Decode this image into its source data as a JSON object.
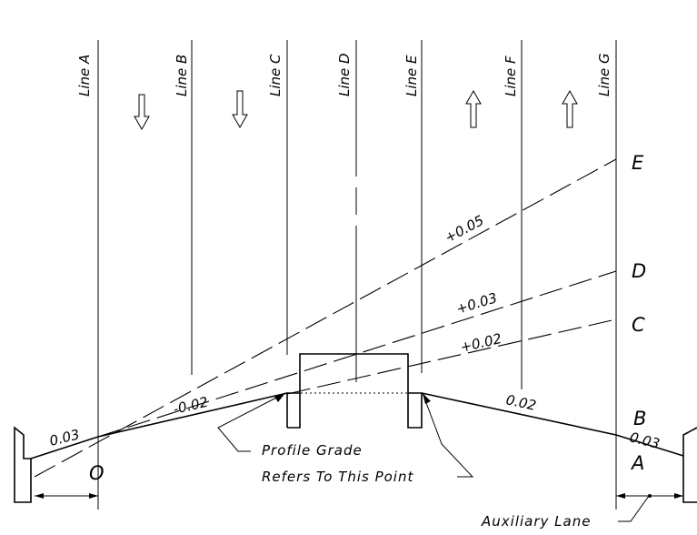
{
  "lines": [
    {
      "id": "line-a",
      "label": "Line A"
    },
    {
      "id": "line-b",
      "label": "Line B"
    },
    {
      "id": "line-c",
      "label": "Line C"
    },
    {
      "id": "line-d",
      "label": "Line D"
    },
    {
      "id": "line-e",
      "label": "Line E"
    },
    {
      "id": "line-f",
      "label": "Line F"
    },
    {
      "id": "line-g",
      "label": "Line G"
    }
  ],
  "points": {
    "O": "O",
    "A": "A",
    "B": "B",
    "C": "C",
    "D": "D",
    "E": "E"
  },
  "slopes": {
    "left_shoulder": "0.03",
    "left_lane": "-0.02",
    "right_lane": "0.02",
    "right_shoulder": "0.03",
    "to_C": "+0.02",
    "to_D": "+0.03",
    "to_E": "+0.05"
  },
  "notes": {
    "profile_line1": "Profile Grade",
    "profile_line2": "Refers To This Point",
    "auxiliary_lane": "Auxiliary Lane"
  },
  "icons": [
    "arrow-down-icon",
    "arrow-down-icon",
    "arrow-up-icon",
    "arrow-up-icon"
  ]
}
